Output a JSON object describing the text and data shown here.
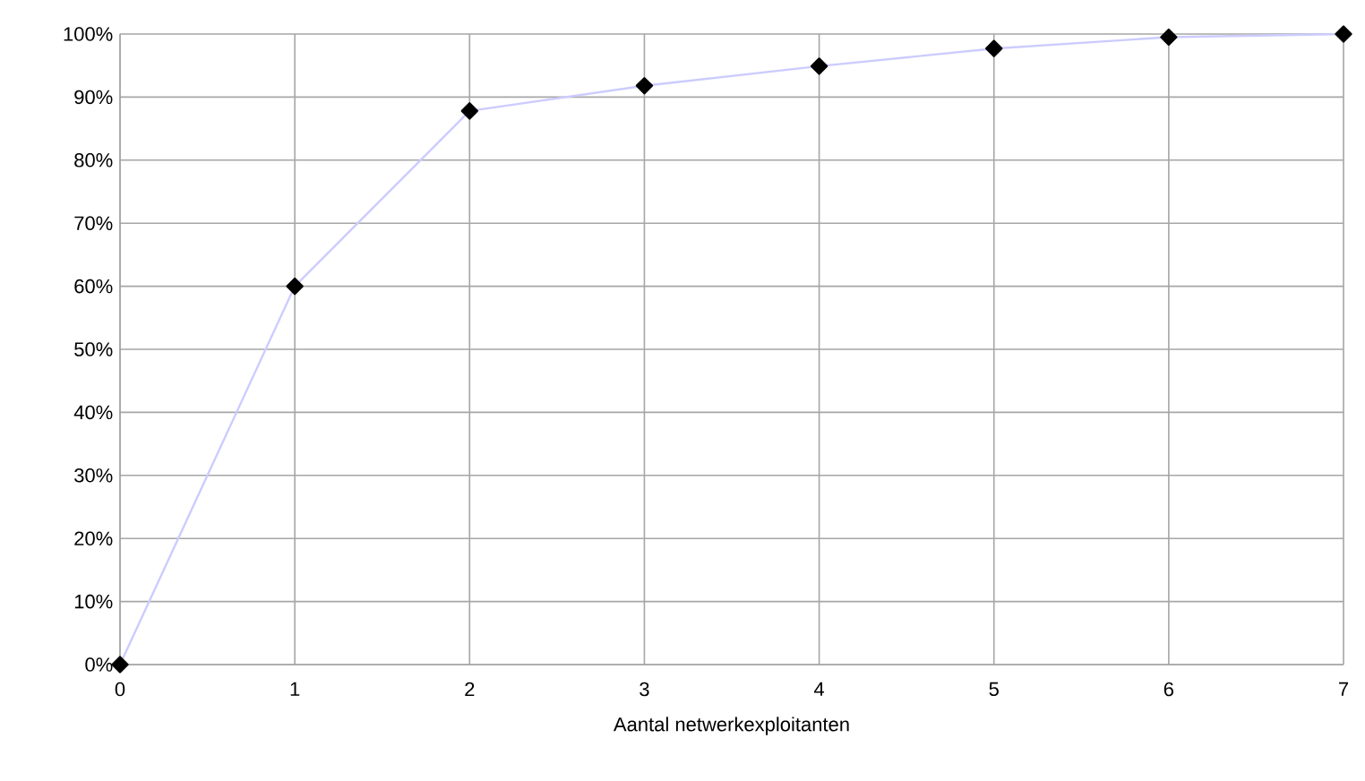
{
  "chart_data": {
    "type": "line",
    "xlabel": "Aantal netwerkexploitanten",
    "x": [
      0,
      1,
      2,
      3,
      4,
      5,
      6,
      7
    ],
    "series": [
      {
        "color": "#ccccff",
        "values": [
          0,
          60,
          87.8,
          91.8,
          94.9,
          97.7,
          99.5,
          100
        ]
      }
    ],
    "xlim": [
      0,
      7
    ],
    "xticks": [
      0,
      1,
      2,
      3,
      4,
      5,
      6,
      7
    ],
    "ylim": [
      0,
      100
    ],
    "yticks": [
      {
        "value": 0,
        "label": "0%"
      },
      {
        "value": 10,
        "label": "10%"
      },
      {
        "value": 20,
        "label": "20%"
      },
      {
        "value": 30,
        "label": "30%"
      },
      {
        "value": 40,
        "label": "40%"
      },
      {
        "value": 50,
        "label": "50%"
      },
      {
        "value": 60,
        "label": "60%"
      },
      {
        "value": 70,
        "label": "70%"
      },
      {
        "value": 80,
        "label": "80%"
      },
      {
        "value": 90,
        "label": "90%"
      },
      {
        "value": 100,
        "label": "100%"
      }
    ],
    "grid": true,
    "marker": "diamond",
    "line_style": "solid"
  }
}
